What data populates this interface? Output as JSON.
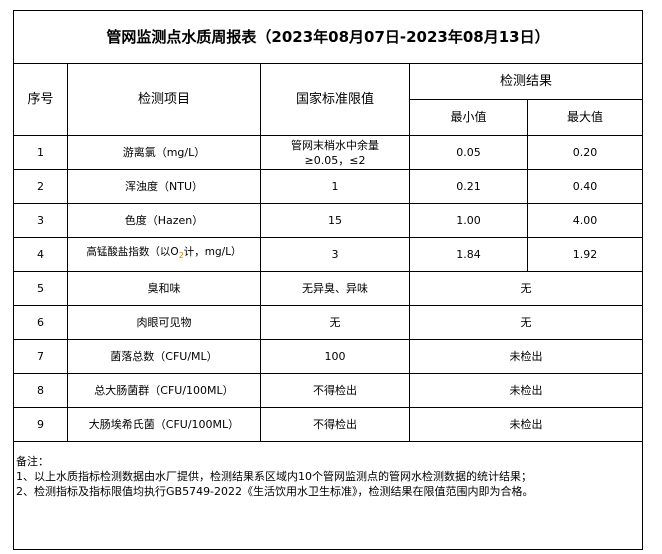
{
  "title": "管网监测点水质周报表（2023年08月07日-2023年08月13日）",
  "headers": {
    "index": "序号",
    "item": "检测项目",
    "standard": "国家标准限值",
    "result": "检测结果",
    "min": "最小值",
    "max": "最大值"
  },
  "rows": [
    {
      "index": "1",
      "item": "游离氯（mg/L）",
      "standard": "管网末梢水中余量≥0.05，≤2",
      "min": "0.05",
      "max": "0.20"
    },
    {
      "index": "2",
      "item": "浑浊度（NTU）",
      "standard": "1",
      "min": "0.21",
      "max": "0.40"
    },
    {
      "index": "3",
      "item": "色度（Hazen）",
      "standard": "15",
      "min": "1.00",
      "max": "4.00"
    },
    {
      "index": "4",
      "item_pre": "高锰酸盐指数（以O",
      "item_sub": "2",
      "item_post": "计，mg/L）",
      "standard": "3",
      "min": "1.84",
      "max": "1.92"
    },
    {
      "index": "5",
      "item": "臭和味",
      "standard": "无异臭、异味",
      "result": "无"
    },
    {
      "index": "6",
      "item": "肉眼可见物",
      "standard": "无",
      "result": "无"
    },
    {
      "index": "7",
      "item": "菌落总数（CFU/ML）",
      "standard": "100",
      "result": "未检出"
    },
    {
      "index": "8",
      "item": "总大肠菌群（CFU/100ML）",
      "standard": "不得检出",
      "result": "未检出"
    },
    {
      "index": "9",
      "item": "大肠埃希氏菌（CFU/100ML）",
      "standard": "不得检出",
      "result": "未检出"
    }
  ],
  "notes": {
    "label": "备注：",
    "lines": [
      "1、以上水质指标检测数据由水厂提供，检测结果系区域内10个管网监测点的管网水检测数据的统计结果；",
      "2、检测指标及指标限值均执行GB5749-2022《生活饮用水卫生标准》，检测结果在限值范围内即为合格。"
    ]
  }
}
